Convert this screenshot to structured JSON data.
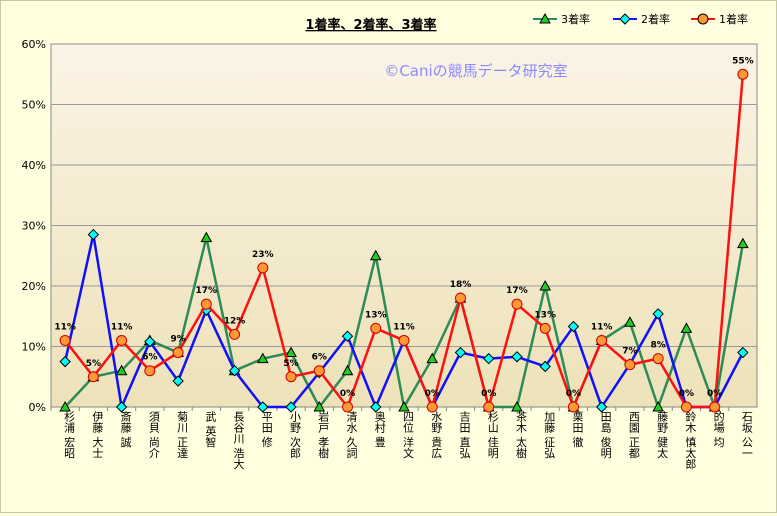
{
  "chart_data": {
    "type": "line",
    "title": "1着率、2着率、3着率",
    "watermark": "©Caniの競馬データ研究室",
    "ylim": [
      0,
      60
    ],
    "yticks": [
      "0%",
      "10%",
      "20%",
      "30%",
      "40%",
      "50%",
      "60%"
    ],
    "grid": true,
    "legend_position": "top-right",
    "categories": [
      "杉浦 宏昭",
      "伊藤 大士",
      "斎藤 誠",
      "須貝 尚介",
      "菊川 正達",
      "武 英智",
      "長谷川 浩大",
      "平田 修",
      "小野 次郎",
      "岩戸 孝樹",
      "清水 久詞",
      "奥村 豊",
      "四位 洋文",
      "水野 貴広",
      "吉田 直弘",
      "杉山 佳明",
      "茶木 太樹",
      "加藤 征弘",
      "栗田 徹",
      "田島 俊明",
      "西園 正都",
      "藤野 健太",
      "鈴木 慎太郎",
      "的場 均",
      "石坂 公一"
    ],
    "series": [
      {
        "name": "3着率",
        "color": "#2e8b57",
        "marker": "triangle",
        "marker_fill": "#22cc22",
        "values": [
          0,
          5,
          6,
          11,
          9,
          28,
          6,
          8,
          9,
          0,
          6,
          25,
          0,
          8,
          18,
          0,
          0,
          20,
          0,
          11,
          14,
          0,
          13,
          0,
          27
        ]
      },
      {
        "name": "2着率",
        "color": "#1010ff",
        "marker": "diamond",
        "marker_fill": "#00ffff",
        "values": [
          7.5,
          28.5,
          0,
          10.8,
          4.3,
          16,
          6,
          0,
          0,
          5.7,
          11.7,
          0,
          11,
          0,
          9,
          8,
          8.3,
          6.7,
          13.3,
          0,
          7.1,
          15.4,
          0,
          0,
          9
        ]
      },
      {
        "name": "1着率",
        "color": "#ff1010",
        "marker": "circle",
        "marker_fill": "#ff9933",
        "values": [
          11,
          5,
          11,
          6,
          9,
          17,
          12,
          23,
          5,
          6,
          0,
          13,
          11,
          0,
          18,
          0,
          17,
          13,
          0,
          11,
          7,
          8,
          0,
          0,
          55
        ]
      }
    ],
    "data_labels": [
      "11%",
      "5%",
      "11%",
      "6%",
      "9%",
      "17%",
      "12%",
      "23%",
      "5%",
      "6%",
      "0%",
      "13%",
      "11%",
      "0%",
      "18%",
      "0%",
      "17%",
      "13%",
      "0%",
      "11%",
      "7%",
      "8%",
      "0%",
      "0%",
      "55%"
    ]
  }
}
